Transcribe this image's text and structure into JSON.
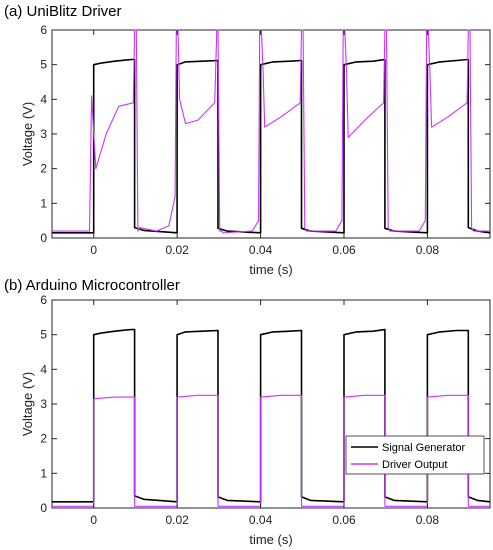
{
  "colors": {
    "signal": "#000000",
    "driver": "#cc33ff",
    "background": "#ffffff",
    "axis": "#262626"
  },
  "legend": {
    "placement": "bottom-right",
    "entries": [
      "Signal Generator",
      "Driver Output"
    ]
  },
  "chart_data": [
    {
      "type": "line",
      "title": "(a) UniBlitz Driver",
      "xlabel": "time (s)",
      "ylabel": "Voltage (V)",
      "xlim": [
        -0.01,
        0.095
      ],
      "ylim": [
        0,
        6
      ],
      "xticks": [
        0,
        0.02,
        0.04,
        0.06,
        0.08
      ],
      "xtick_labels": [
        "0",
        "0.02",
        "0.04",
        "0.06",
        "0.08"
      ],
      "yticks": [
        0,
        1,
        2,
        3,
        4,
        5,
        6
      ],
      "ytick_labels": [
        "0",
        "1",
        "2",
        "3",
        "4",
        "5",
        "6"
      ],
      "grid": false,
      "series": [
        {
          "name": "Signal Generator",
          "color": "#000000",
          "x": [
            -0.01,
            0,
            0,
            0.002,
            0.005,
            0.009,
            0.0098,
            0.0098,
            0.012,
            0.02,
            0.02,
            0.022,
            0.026,
            0.0298,
            0.0298,
            0.032,
            0.04,
            0.04,
            0.043,
            0.047,
            0.0498,
            0.0498,
            0.052,
            0.06,
            0.06,
            0.063,
            0.067,
            0.0698,
            0.0698,
            0.072,
            0.08,
            0.08,
            0.083,
            0.087,
            0.0898,
            0.0898,
            0.092,
            0.095
          ],
          "y": [
            0.15,
            0.15,
            5.0,
            5.05,
            5.1,
            5.15,
            5.15,
            0.3,
            0.22,
            0.15,
            5.0,
            5.08,
            5.1,
            5.12,
            0.28,
            0.2,
            0.15,
            5.0,
            5.08,
            5.1,
            5.12,
            0.28,
            0.2,
            0.15,
            5.0,
            5.08,
            5.1,
            5.15,
            0.28,
            0.2,
            0.15,
            5.0,
            5.08,
            5.12,
            5.15,
            0.3,
            0.2,
            0.15
          ]
        },
        {
          "name": "Driver Output",
          "color": "#cc33ff",
          "x": [
            -0.01,
            -0.001,
            -0.0005,
            0.0005,
            0.003,
            0.006,
            0.0095,
            0.0098,
            0.0102,
            0.0106,
            0.011,
            0.015,
            0.018,
            0.0195,
            0.0198,
            0.0202,
            0.0206,
            0.022,
            0.025,
            0.029,
            0.0295,
            0.0298,
            0.0302,
            0.0306,
            0.031,
            0.038,
            0.0395,
            0.0398,
            0.0402,
            0.0406,
            0.041,
            0.045,
            0.0495,
            0.0498,
            0.0502,
            0.0506,
            0.051,
            0.058,
            0.0595,
            0.0598,
            0.0602,
            0.0606,
            0.061,
            0.065,
            0.0695,
            0.0698,
            0.0702,
            0.0706,
            0.071,
            0.078,
            0.0795,
            0.0798,
            0.0802,
            0.0806,
            0.081,
            0.085,
            0.0895,
            0.0898,
            0.0902,
            0.0906,
            0.091,
            0.095
          ],
          "y": [
            0.2,
            0.2,
            4.1,
            2.0,
            3.0,
            3.8,
            3.9,
            6.0,
            6.0,
            0.2,
            0.3,
            0.2,
            0.35,
            1.2,
            6.0,
            6.0,
            4.0,
            3.3,
            3.4,
            3.9,
            6.0,
            6.0,
            0.2,
            0.2,
            0.15,
            0.2,
            0.5,
            6.0,
            6.0,
            4.8,
            3.2,
            3.5,
            3.9,
            6.0,
            6.0,
            0.3,
            0.2,
            0.2,
            0.5,
            6.0,
            6.0,
            4.8,
            2.9,
            3.4,
            3.9,
            6.0,
            6.0,
            0.3,
            0.2,
            0.2,
            0.5,
            6.0,
            6.0,
            4.8,
            3.2,
            3.5,
            3.9,
            6.0,
            6.0,
            0.3,
            0.2,
            0.2
          ]
        }
      ]
    },
    {
      "type": "line",
      "title": "(b) Arduino Microcontroller",
      "xlabel": "time (s)",
      "ylabel": "Voltage (V)",
      "xlim": [
        -0.01,
        0.095
      ],
      "ylim": [
        0,
        6
      ],
      "xticks": [
        0,
        0.02,
        0.04,
        0.06,
        0.08
      ],
      "xtick_labels": [
        "0",
        "0.02",
        "0.04",
        "0.06",
        "0.08"
      ],
      "yticks": [
        0,
        1,
        2,
        3,
        4,
        5,
        6
      ],
      "ytick_labels": [
        "0",
        "1",
        "2",
        "3",
        "4",
        "5",
        "6"
      ],
      "grid": false,
      "series": [
        {
          "name": "Signal Generator",
          "color": "#000000",
          "x": [
            -0.01,
            0,
            0,
            0.002,
            0.005,
            0.009,
            0.0098,
            0.0098,
            0.012,
            0.02,
            0.02,
            0.022,
            0.026,
            0.0298,
            0.0298,
            0.032,
            0.04,
            0.04,
            0.043,
            0.047,
            0.0498,
            0.0498,
            0.052,
            0.06,
            0.06,
            0.063,
            0.067,
            0.0698,
            0.0698,
            0.072,
            0.08,
            0.08,
            0.083,
            0.087,
            0.0898,
            0.0898,
            0.092,
            0.095
          ],
          "y": [
            0.18,
            0.18,
            5.0,
            5.05,
            5.1,
            5.15,
            5.15,
            0.35,
            0.25,
            0.18,
            5.0,
            5.08,
            5.1,
            5.12,
            0.32,
            0.22,
            0.18,
            5.0,
            5.08,
            5.1,
            5.12,
            0.32,
            0.22,
            0.18,
            5.0,
            5.08,
            5.1,
            5.15,
            0.32,
            0.22,
            0.18,
            5.0,
            5.08,
            5.12,
            5.12,
            0.32,
            0.22,
            0.18
          ]
        },
        {
          "name": "Driver Output",
          "color": "#cc33ff",
          "x": [
            -0.01,
            0,
            0,
            0.005,
            0.0098,
            0.0098,
            0.02,
            0.02,
            0.025,
            0.0298,
            0.0298,
            0.04,
            0.04,
            0.045,
            0.0498,
            0.0498,
            0.06,
            0.06,
            0.065,
            0.0698,
            0.0698,
            0.08,
            0.08,
            0.085,
            0.0898,
            0.0898,
            0.095
          ],
          "y": [
            0.05,
            0.05,
            3.15,
            3.2,
            3.2,
            0.05,
            0.05,
            3.2,
            3.25,
            3.25,
            0.05,
            0.05,
            3.2,
            3.25,
            3.25,
            0.05,
            0.05,
            3.2,
            3.25,
            3.25,
            0.05,
            0.05,
            3.2,
            3.25,
            3.25,
            0.05,
            0.05
          ]
        }
      ]
    }
  ]
}
